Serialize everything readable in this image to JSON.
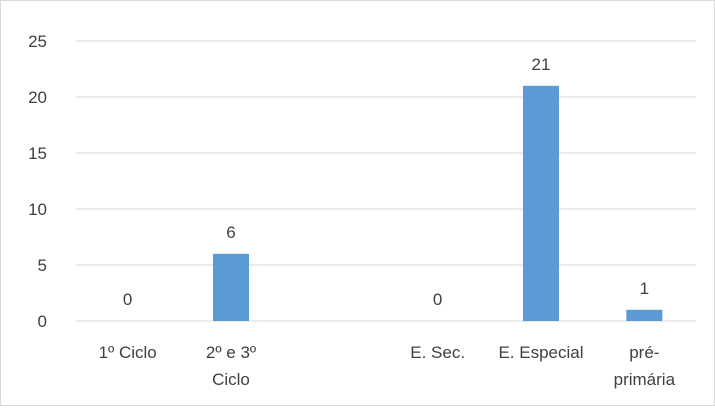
{
  "chart_data": {
    "type": "bar",
    "categories": [
      [
        "1º Ciclo"
      ],
      [
        "2º e 3º",
        "Ciclo"
      ],
      [
        ""
      ],
      [
        "E. Sec."
      ],
      [
        "E. Especial"
      ],
      [
        "pré-",
        "primária"
      ]
    ],
    "values": [
      0,
      6,
      null,
      0,
      21,
      1
    ],
    "data_labels": [
      "0",
      "6",
      "",
      "0",
      "21",
      "1"
    ],
    "y_ticks": [
      "0",
      "5",
      "10",
      "15",
      "20",
      "25"
    ],
    "ylim": [
      0,
      25
    ],
    "title": "",
    "xlabel": "",
    "ylabel": "",
    "grid": true,
    "legend": "none",
    "bar_color": "#5b9bd5",
    "gridline_color": "#d9d9d9",
    "text_color": "#404040"
  }
}
